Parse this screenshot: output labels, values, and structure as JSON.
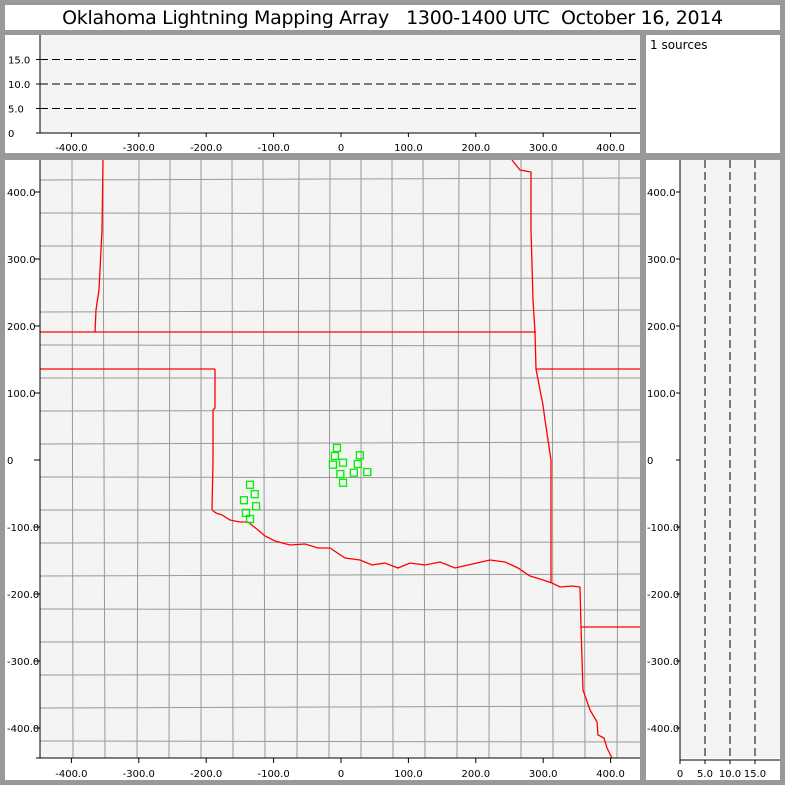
{
  "title": "Oklahoma Lightning Mapping Array   1300-1400 UTC  October 16, 2014",
  "legend": {
    "text": "1 sources"
  },
  "colors": {
    "background": "#999999",
    "plot_bg": "#f4f4f4",
    "county_lines": "#999999",
    "state_borders": "#ff0000",
    "sources": "#00ee00"
  },
  "chart_data": [
    {
      "type": "scatter",
      "panel": "altitude-vs-east-west",
      "xlim": [
        -447,
        444
      ],
      "ylim": [
        0,
        20
      ],
      "xticks": [
        "-400.0",
        "-300.0",
        "-200.0",
        "-100.0",
        "0",
        "100.0",
        "200.0",
        "300.0",
        "400.0"
      ],
      "yticks": [
        "0",
        "5.0",
        "10.0",
        "15.0"
      ],
      "grid": "dashed horizontal at 5, 10, 15",
      "points": []
    },
    {
      "type": "scatter",
      "panel": "plan-view-map",
      "xlim": [
        -447,
        444
      ],
      "ylim": [
        -445,
        448
      ],
      "xticks": [
        "-400.0",
        "-300.0",
        "-200.0",
        "-100.0",
        "0",
        "100.0",
        "200.0",
        "300.0",
        "400.0"
      ],
      "yticks": [
        "400.0",
        "300.0",
        "200.0",
        "100.0",
        "0",
        "-100.0",
        "-200.0",
        "-300.0",
        "-400.0"
      ],
      "marker": "open square",
      "points": [
        [
          -6,
          18
        ],
        [
          -9,
          6
        ],
        [
          28,
          7
        ],
        [
          3,
          -4
        ],
        [
          -12,
          -7
        ],
        [
          25,
          -6
        ],
        [
          -1,
          -21
        ],
        [
          19,
          -19
        ],
        [
          39,
          -18
        ],
        [
          3,
          -34
        ],
        [
          -135,
          -37
        ],
        [
          -128,
          -51
        ],
        [
          -144,
          -60
        ],
        [
          -126,
          -69
        ],
        [
          -141,
          -79
        ],
        [
          -135,
          -88
        ]
      ]
    },
    {
      "type": "scatter",
      "panel": "north-south-vs-altitude",
      "xlim": [
        0,
        20
      ],
      "ylim": [
        -445,
        448
      ],
      "xticks": [
        "0",
        "5.0",
        "10.0",
        "15.0"
      ],
      "yticks": [
        "400.0",
        "300.0",
        "200.0",
        "100.0",
        "0",
        "-100.0",
        "-200.0",
        "-300.0",
        "-400.0"
      ],
      "grid": "dashed vertical at 5, 10, 15",
      "points": []
    }
  ]
}
